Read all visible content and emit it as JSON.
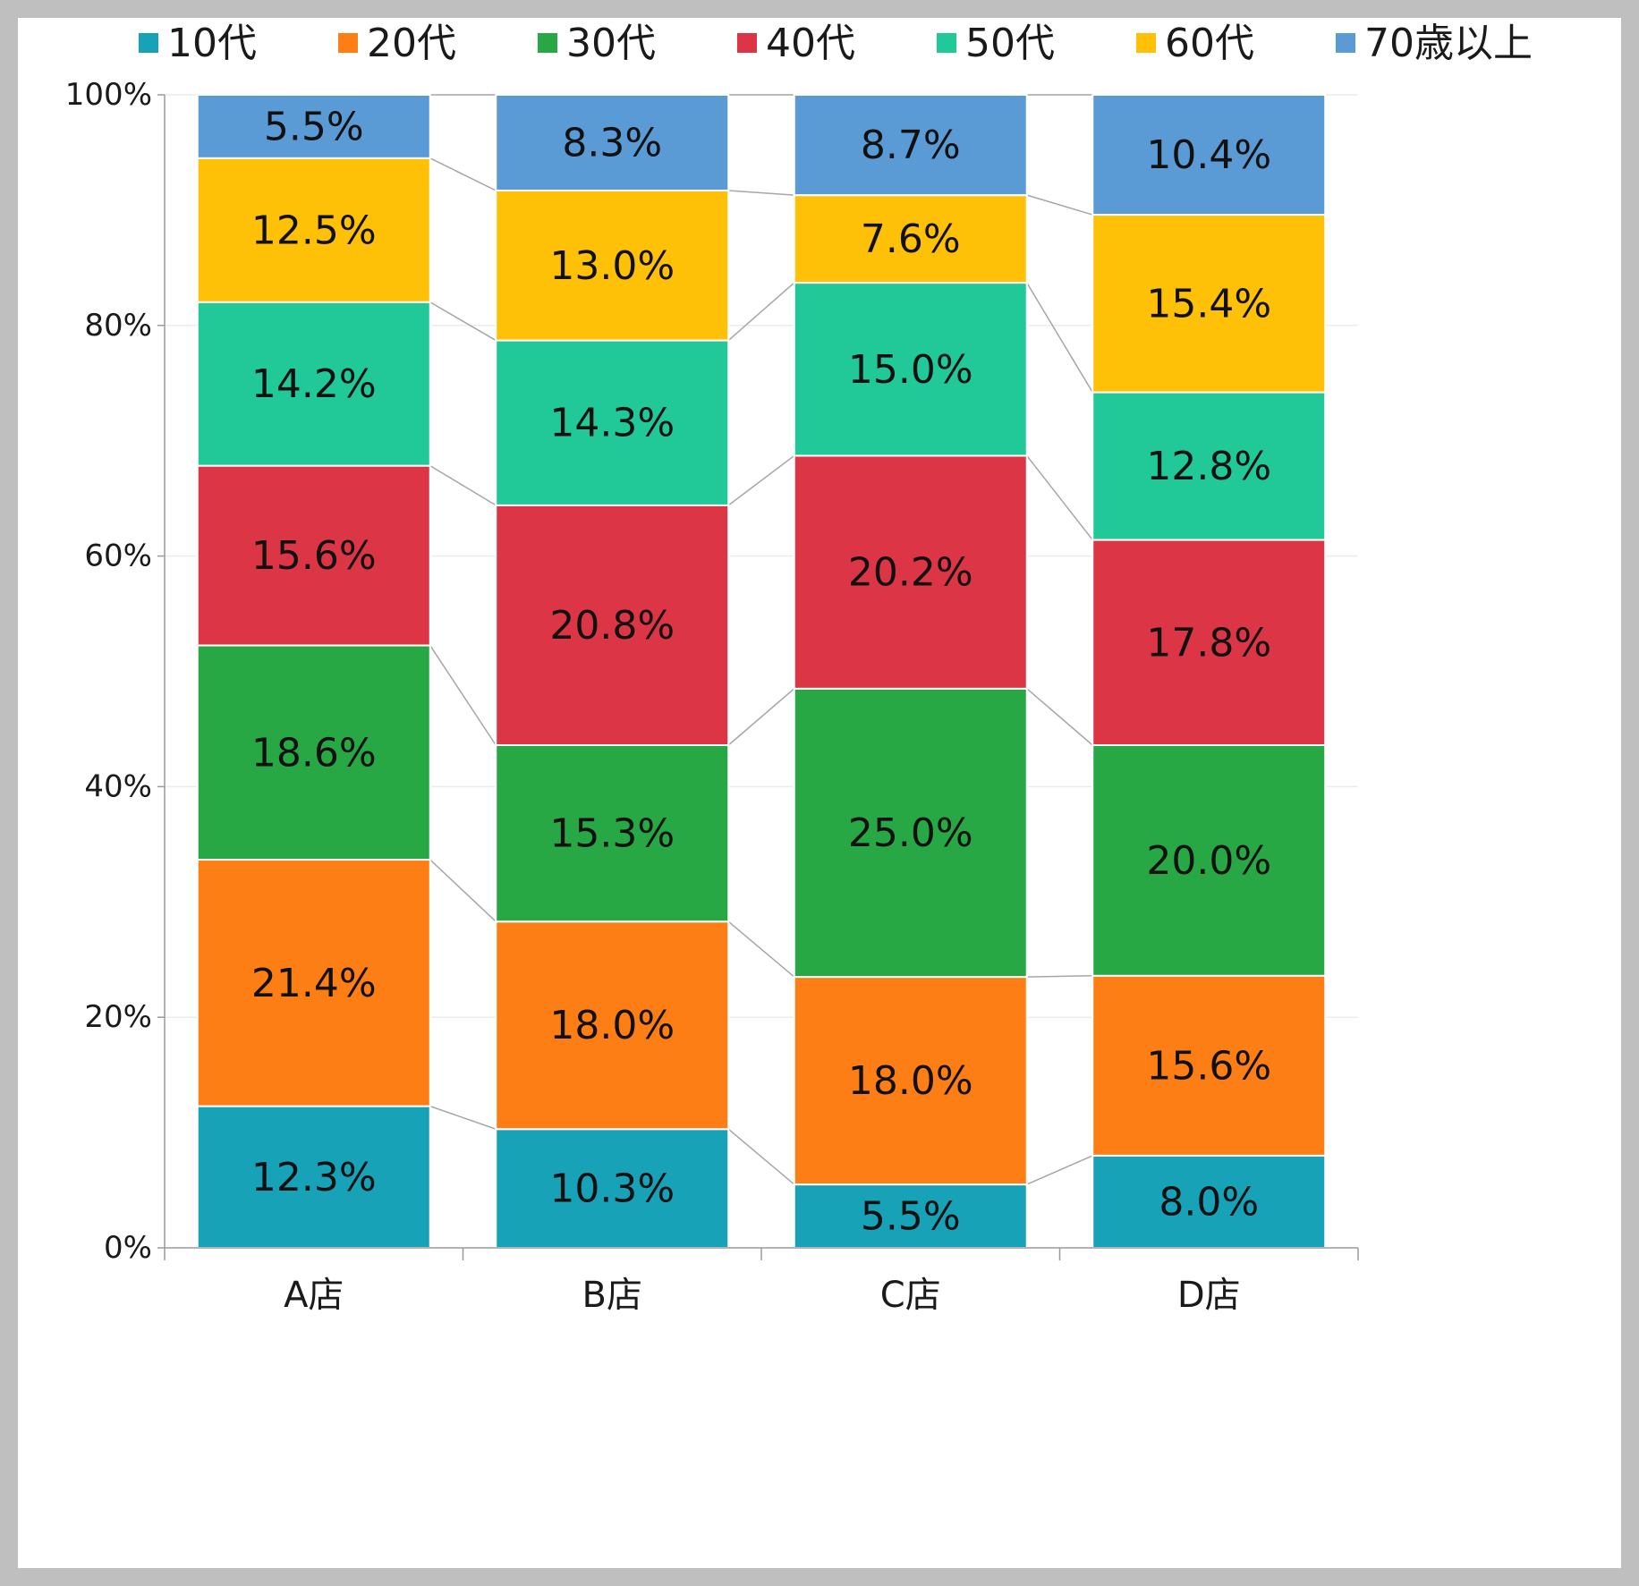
{
  "chart_data": {
    "type": "bar",
    "stacked": true,
    "normalized": true,
    "title": "",
    "xlabel": "",
    "ylabel": "",
    "ylim": [
      0,
      100
    ],
    "yticks": [
      "0%",
      "20%",
      "40%",
      "60%",
      "80%",
      "100%"
    ],
    "ytick_values": [
      0,
      20,
      40,
      60,
      80,
      100
    ],
    "categories": [
      "A店",
      "B店",
      "C店",
      "D店"
    ],
    "legend_position": "top",
    "series_lines": true,
    "grid": true,
    "series": [
      {
        "name": "10代",
        "color": "#17a2b8",
        "values": [
          12.3,
          10.3,
          5.5,
          8.0
        ],
        "labels": [
          "12.3%",
          "10.3%",
          "5.5%",
          "8.0%"
        ]
      },
      {
        "name": "20代",
        "color": "#fd7e14",
        "values": [
          21.4,
          18.0,
          18.0,
          15.6
        ],
        "labels": [
          "21.4%",
          "18.0%",
          "18.0%",
          "15.6%"
        ]
      },
      {
        "name": "30代",
        "color": "#28a745",
        "values": [
          18.6,
          15.3,
          25.0,
          20.0
        ],
        "labels": [
          "18.6%",
          "15.3%",
          "25.0%",
          "20.0%"
        ]
      },
      {
        "name": "40代",
        "color": "#dc3545",
        "values": [
          15.6,
          20.8,
          20.2,
          17.8
        ],
        "labels": [
          "15.6%",
          "20.8%",
          "20.2%",
          "17.8%"
        ]
      },
      {
        "name": "50代",
        "color": "#20c997",
        "values": [
          14.2,
          14.3,
          15.0,
          12.8
        ],
        "labels": [
          "14.2%",
          "14.3%",
          "15.0%",
          "12.8%"
        ]
      },
      {
        "name": "60代",
        "color": "#ffc107",
        "values": [
          12.5,
          13.0,
          7.6,
          15.4
        ],
        "labels": [
          "12.5%",
          "13.0%",
          "7.6%",
          "15.4%"
        ]
      },
      {
        "name": "70歳以上",
        "color": "#5b9bd5",
        "values": [
          5.5,
          8.3,
          8.7,
          10.4
        ],
        "labels": [
          "5.5%",
          "8.3%",
          "8.7%",
          "10.4%"
        ]
      }
    ]
  }
}
